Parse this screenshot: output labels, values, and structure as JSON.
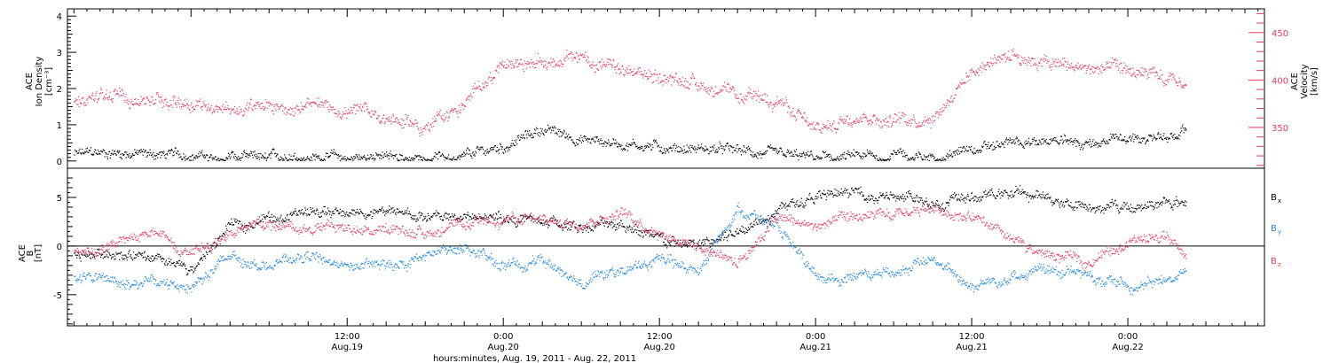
{
  "colors": {
    "density": "#000000",
    "velocity": "#e8395f",
    "bx": "#000000",
    "by": "#1e88e5",
    "bz": "#e8395f",
    "axis": "#000000"
  },
  "xaxis": {
    "title": "hours:minutes, Aug. 19, 2011 - Aug. 22, 2011",
    "range_hours": [
      -9.5,
      82.5
    ],
    "ticks": [
      {
        "h": 12,
        "time": "12:00",
        "date": "Aug.19"
      },
      {
        "h": 24,
        "time": "0:00",
        "date": "Aug.20"
      },
      {
        "h": 36,
        "time": "12:00",
        "date": "Aug.20"
      },
      {
        "h": 48,
        "time": "0:00",
        "date": "Aug.21"
      },
      {
        "h": 60,
        "time": "12:00",
        "date": "Aug.21"
      },
      {
        "h": 72,
        "time": "0:00",
        "date": "Aug.22"
      }
    ],
    "data_end_hours": 76.5
  },
  "chart_data": [
    {
      "type": "scatter",
      "panel": "top",
      "left_label": [
        "ACE",
        "Ion Density",
        "[cm⁻³]"
      ],
      "right_label": [
        "ACE",
        "Velocity",
        "[km/s]"
      ],
      "ylim_left": [
        -0.2,
        4.2
      ],
      "ylim_right": [
        307,
        475
      ],
      "left_ticks": [
        "0",
        "1",
        "2",
        "3",
        "4"
      ],
      "right_ticks": [
        "350",
        "400",
        "450"
      ],
      "series": [
        {
          "key": "density",
          "axis": "left",
          "x": [
            -9,
            -6,
            -3,
            0,
            3,
            6,
            9,
            12,
            15,
            18,
            21,
            24,
            27,
            30,
            33,
            36,
            39,
            42,
            45,
            48,
            51,
            54,
            57,
            60,
            63,
            66,
            69,
            72,
            75,
            76.5
          ],
          "values": [
            0.2,
            0.25,
            0.2,
            0.15,
            0.12,
            0.1,
            0.1,
            0.1,
            0.1,
            0.12,
            0.15,
            0.4,
            0.9,
            0.6,
            0.5,
            0.4,
            0.35,
            0.3,
            0.15,
            0.1,
            0.12,
            0.15,
            0.15,
            0.3,
            0.5,
            0.55,
            0.5,
            0.6,
            0.7,
            0.9
          ]
        },
        {
          "key": "velocity",
          "axis": "right",
          "x": [
            -9,
            -6,
            -3,
            0,
            3,
            6,
            9,
            12,
            15,
            18,
            21,
            24,
            27,
            30,
            33,
            36,
            39,
            42,
            45,
            48,
            51,
            54,
            57,
            60,
            63,
            66,
            69,
            72,
            75,
            76.5
          ],
          "values": [
            380,
            383,
            380,
            378,
            368,
            372,
            372,
            368,
            362,
            350,
            375,
            420,
            418,
            425,
            408,
            404,
            398,
            380,
            382,
            345,
            365,
            358,
            362,
            410,
            430,
            418,
            412,
            410,
            398,
            394
          ]
        }
      ]
    },
    {
      "type": "scatter",
      "panel": "bottom",
      "left_label": [
        "ACE",
        "B",
        "[nT]"
      ],
      "ylim": [
        -8.2,
        8
      ],
      "left_ticks": [
        "-5",
        "0",
        "5"
      ],
      "series": [
        {
          "key": "bx",
          "name": "Bx",
          "x": [
            -9,
            -6,
            -3,
            0,
            3,
            6,
            9,
            12,
            15,
            18,
            21,
            24,
            27,
            30,
            33,
            36,
            39,
            42,
            45,
            48,
            51,
            54,
            57,
            60,
            63,
            66,
            69,
            72,
            75,
            76.5
          ],
          "values": [
            -1,
            -0.5,
            -1.5,
            -2.5,
            2,
            3,
            3.5,
            3.5,
            3.5,
            3,
            3,
            3,
            2.5,
            2,
            2.5,
            0.5,
            0,
            1.5,
            4,
            5,
            5.5,
            5,
            4.5,
            5,
            5.5,
            5,
            4,
            4,
            4.5,
            4.5
          ]
        },
        {
          "key": "by",
          "name": "By",
          "x": [
            -9,
            -6,
            -3,
            0,
            3,
            6,
            9,
            12,
            15,
            18,
            21,
            24,
            27,
            30,
            33,
            36,
            39,
            42,
            45,
            48,
            51,
            54,
            57,
            60,
            63,
            66,
            69,
            72,
            75,
            76.5
          ],
          "values": [
            -3,
            -3.5,
            -3.8,
            -4,
            -1,
            -2,
            -1,
            -2,
            -2,
            -1,
            0,
            -2,
            -1.5,
            -3.5,
            -2.5,
            -1.5,
            -2.5,
            4,
            2,
            -3.5,
            -3,
            -2.5,
            -1.5,
            -4,
            -3,
            -2.5,
            -3,
            -4,
            -3.5,
            -2.5
          ]
        },
        {
          "key": "bz",
          "name": "Bz",
          "x": [
            -9,
            -6,
            -3,
            0,
            3,
            6,
            9,
            12,
            15,
            18,
            21,
            24,
            27,
            30,
            33,
            36,
            39,
            42,
            45,
            48,
            51,
            54,
            57,
            60,
            63,
            66,
            69,
            72,
            75,
            76.5
          ],
          "values": [
            -0.5,
            0,
            1.5,
            -0.5,
            1.5,
            2.5,
            2,
            2,
            1.5,
            1.5,
            2,
            3,
            2.5,
            2.5,
            3.5,
            1.5,
            0,
            -1.5,
            3,
            2,
            3,
            3,
            4,
            3,
            0.5,
            -1,
            -1.5,
            0.5,
            1,
            -1
          ]
        }
      ],
      "legend": [
        {
          "key": "bx",
          "letter": "B",
          "sub": "x"
        },
        {
          "key": "by",
          "letter": "B",
          "sub": "y"
        },
        {
          "key": "bz",
          "letter": "B",
          "sub": "z"
        }
      ]
    }
  ]
}
